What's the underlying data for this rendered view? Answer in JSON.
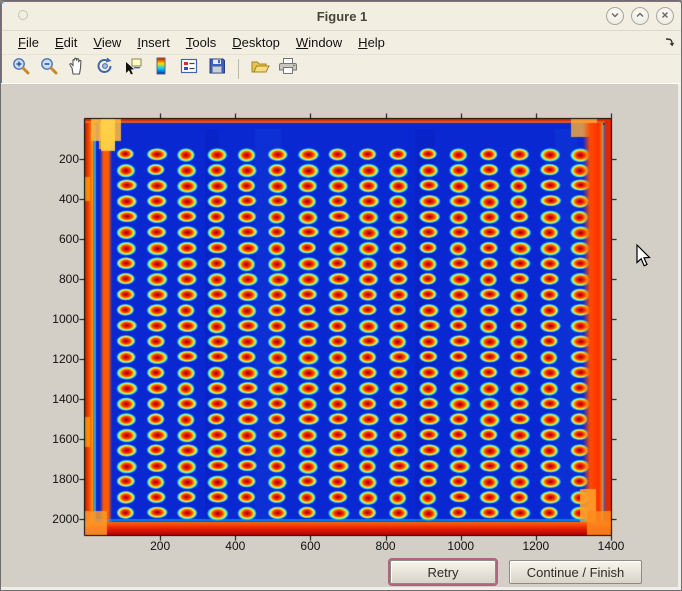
{
  "window": {
    "title": "Figure 1",
    "controls": [
      {
        "name": "shade",
        "glyph": "chevron-down"
      },
      {
        "name": "unshade",
        "glyph": "chevron-up"
      },
      {
        "name": "close",
        "glyph": "x"
      }
    ]
  },
  "menubar": {
    "items": [
      {
        "label": "File"
      },
      {
        "label": "Edit"
      },
      {
        "label": "View"
      },
      {
        "label": "Insert"
      },
      {
        "label": "Tools"
      },
      {
        "label": "Desktop"
      },
      {
        "label": "Window"
      },
      {
        "label": "Help"
      }
    ]
  },
  "toolbar": {
    "icons": [
      {
        "name": "zoom-in"
      },
      {
        "name": "zoom-out"
      },
      {
        "name": "pan-hand"
      },
      {
        "name": "rotate-3d"
      },
      {
        "name": "data-cursor"
      },
      {
        "name": "colorbar"
      },
      {
        "name": "legend"
      },
      {
        "name": "save"
      },
      {
        "name": "separator"
      },
      {
        "name": "open-folder"
      },
      {
        "name": "print"
      }
    ]
  },
  "buttons": {
    "retry": "Retry",
    "continue": "Continue / Finish"
  },
  "chart_data": {
    "type": "heatmap",
    "description": "Thermal-style image (jet colormap) of a rectangular plate containing a 16 x 24 array of hot elliptical spots on a cold blue background with hot red/orange edges",
    "title": "",
    "xlabel": "",
    "ylabel": "",
    "xlim": [
      0,
      1400
    ],
    "ylim": [
      0,
      2080
    ],
    "y_axis_reversed": true,
    "x_ticks": [
      200,
      400,
      600,
      800,
      1000,
      1200,
      1400
    ],
    "y_ticks": [
      200,
      400,
      600,
      800,
      1000,
      1200,
      1400,
      1600,
      1800,
      2000
    ],
    "grid": {
      "cols": 16,
      "rows": 24,
      "x_first_center": 110,
      "x_step": 80.5,
      "y_first_center": 178,
      "y_step": 77.9,
      "spot_rx": 26.6,
      "spot_ry": 33.0
    },
    "colors": {
      "background_blue": "#0A28D2",
      "spot_core": "#8F0000",
      "spot_red": "#E01000",
      "spot_orange": "#FF7A00",
      "spot_yellow": "#FFD200",
      "spot_halo_cyan": "#35E0FF",
      "edge_red": "#E02800",
      "edge_orange": "#FF7A00",
      "edge_corner_orange": "#FFB83C",
      "edge_yellow": "#FFD24A",
      "axis_color": "#000000"
    }
  }
}
